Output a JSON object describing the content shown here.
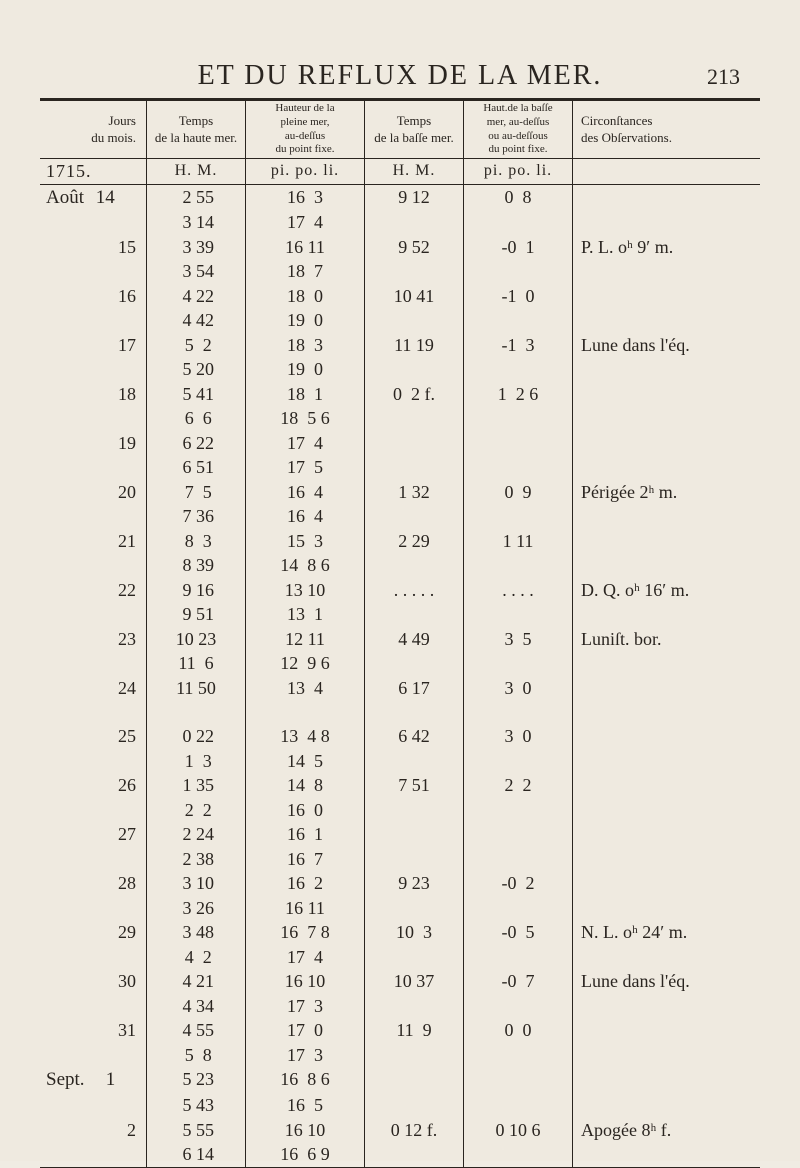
{
  "title": "ET DU REFLUX DE LA MER.",
  "page_number": "213",
  "year_label": "1715.",
  "month1": "Août",
  "month2": "Sept.",
  "headers": {
    "c1": "Jours\ndu mois.",
    "c2": "Temps\nde la haute mer.",
    "c3": "Hauteur de la\npleine mer,\nau-deſſus\ndu point fixe.",
    "c4": "Temps\nde la baſſe mer.",
    "c5": "Haut.de la baſſe\nmer, au-deſſus\nou au-deſſous\ndu point fixe.",
    "c6": "Circonſtances\ndes Obſervations.",
    "sub2": "H.  M.",
    "sub3": "pi. po. li.",
    "sub4": "H. M.",
    "sub5": "pi. po. li."
  },
  "rows": [
    {
      "day": "14",
      "hm": [
        "2 55",
        "3 14"
      ],
      "pi1": [
        "16  3",
        "17  4"
      ],
      "hm2": "9 12",
      "pi2": "0  8",
      "obs": ""
    },
    {
      "day": "15",
      "hm": [
        "3 39",
        "3 54"
      ],
      "pi1": [
        "16 11",
        "18  7"
      ],
      "hm2": "9 52",
      "pi2": "-0  1",
      "obs": "P. L. oʰ 9′ m."
    },
    {
      "day": "16",
      "hm": [
        "4 22",
        "4 42"
      ],
      "pi1": [
        "18  0",
        "19  0"
      ],
      "hm2": "10 41",
      "pi2": "-1  0",
      "obs": ""
    },
    {
      "day": "17",
      "hm": [
        "5  2",
        "5 20"
      ],
      "pi1": [
        "18  3",
        "19  0"
      ],
      "hm2": "11 19",
      "pi2": "-1  3",
      "obs": "Lune dans l'éq."
    },
    {
      "day": "18",
      "hm": [
        "5 41",
        "6  6"
      ],
      "pi1": [
        "18  1",
        "18  5 6"
      ],
      "hm2": "0  2 f.",
      "pi2": "1  2 6",
      "obs": ""
    },
    {
      "day": "19",
      "hm": [
        "6 22",
        "6 51"
      ],
      "pi1": [
        "17  4",
        "17  5"
      ],
      "hm2": "",
      "pi2": "",
      "obs": ""
    },
    {
      "day": "20",
      "hm": [
        "7  5",
        "7 36"
      ],
      "pi1": [
        "16  4",
        "16  4"
      ],
      "hm2": "1 32",
      "pi2": "0  9",
      "obs": "Périgée 2ʰ m."
    },
    {
      "day": "21",
      "hm": [
        "8  3",
        "8 39"
      ],
      "pi1": [
        "15  3",
        "14  8 6"
      ],
      "hm2": "2 29",
      "pi2": "1 11",
      "obs": ""
    },
    {
      "day": "22",
      "hm": [
        "9 16",
        "9 51"
      ],
      "pi1": [
        "13 10",
        "13  1"
      ],
      "hm2": ". . . . .",
      "pi2": ". . . .",
      "obs": "D. Q. oʰ 16′ m."
    },
    {
      "day": "23",
      "hm": [
        "10 23",
        "11  6"
      ],
      "pi1": [
        "12 11",
        "12  9 6"
      ],
      "hm2": "4 49",
      "pi2": "3  5",
      "obs": "Luniſt. bor."
    },
    {
      "day": "24",
      "hm": [
        "11 50",
        ""
      ],
      "pi1": [
        "13  4",
        ""
      ],
      "hm2": "6 17",
      "pi2": "3  0",
      "obs": ""
    },
    {
      "day": "25",
      "hm": [
        "0 22",
        "1  3"
      ],
      "pi1": [
        "13  4 8",
        "14  5"
      ],
      "hm2": "6 42",
      "pi2": "3  0",
      "obs": ""
    },
    {
      "day": "26",
      "hm": [
        "1 35",
        "2  2"
      ],
      "pi1": [
        "14  8",
        "16  0"
      ],
      "hm2": "7 51",
      "pi2": "2  2",
      "obs": ""
    },
    {
      "day": "27",
      "hm": [
        "2 24",
        "2 38"
      ],
      "pi1": [
        "16  1",
        "16  7"
      ],
      "hm2": "",
      "pi2": "",
      "obs": ""
    },
    {
      "day": "28",
      "hm": [
        "3 10",
        "3 26"
      ],
      "pi1": [
        "16  2",
        "16 11"
      ],
      "hm2": "9 23",
      "pi2": "-0  2",
      "obs": ""
    },
    {
      "day": "29",
      "hm": [
        "3 48",
        "4  2"
      ],
      "pi1": [
        "16  7 8",
        "17  4"
      ],
      "hm2": "10  3",
      "pi2": "-0  5",
      "obs": "N. L. oʰ 24′ m."
    },
    {
      "day": "30",
      "hm": [
        "4 21",
        "4 34"
      ],
      "pi1": [
        "16 10",
        "17  3"
      ],
      "hm2": "10 37",
      "pi2": "-0  7",
      "obs": "Lune dans l'éq."
    },
    {
      "day": "31",
      "hm": [
        "4 55",
        "5  8"
      ],
      "pi1": [
        "17  0",
        "17  3"
      ],
      "hm2": "11  9",
      "pi2": "0  0",
      "obs": ""
    },
    {
      "day": "1",
      "hm": [
        "5 23",
        "5 43"
      ],
      "pi1": [
        "16  8 6",
        "16  5"
      ],
      "hm2": "",
      "pi2": "",
      "obs": "",
      "month": "Sept."
    },
    {
      "day": "2",
      "hm": [
        "5 55",
        "6 14"
      ],
      "pi1": [
        "16 10",
        "16  6 9"
      ],
      "hm2": "0 12 f.",
      "pi2": "0 10 6",
      "obs": "Apogée 8ʰ f."
    }
  ]
}
